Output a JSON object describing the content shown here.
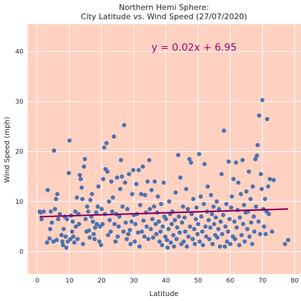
{
  "chart_data": {
    "type": "scatter",
    "title_lines": [
      "Northern Hemi Sphere:",
      "City Latitude vs. Wind Speed (27/07/2020)"
    ],
    "xlabel": "Latitude",
    "ylabel": "Wind Speed (mph)",
    "xlim": [
      -3,
      82
    ],
    "ylim": [
      -4.5,
      45.5
    ],
    "xticks": [
      0,
      10,
      20,
      30,
      40,
      50,
      60,
      70,
      80
    ],
    "yticks": [
      0,
      10,
      20,
      30,
      40
    ],
    "grid": true,
    "background_color": "#ffd1c1",
    "point_color": "#4c72b0",
    "regression": {
      "equation": "y = 0.02x + 6.95",
      "slope": 0.02,
      "intercept": 6.95,
      "x_range": [
        0.7,
        78
      ],
      "color": "#8b0060",
      "label_color": "#a0006e"
    },
    "points": [
      [
        0.7,
        8.0
      ],
      [
        1.0,
        7.8
      ],
      [
        1.3,
        6.5
      ],
      [
        2.0,
        8.0
      ],
      [
        3.0,
        1.8
      ],
      [
        3.2,
        12.3
      ],
      [
        3.8,
        2.6
      ],
      [
        4.0,
        4.5
      ],
      [
        4.2,
        8.0
      ],
      [
        4.5,
        5.8
      ],
      [
        5.0,
        2.0
      ],
      [
        5.2,
        20.2
      ],
      [
        5.5,
        8.5
      ],
      [
        5.8,
        10.5
      ],
      [
        6.0,
        2.3
      ],
      [
        6.2,
        11.5
      ],
      [
        6.5,
        6.5
      ],
      [
        7.0,
        7.5
      ],
      [
        7.5,
        3.3
      ],
      [
        7.8,
        2.0
      ],
      [
        8.0,
        1.3
      ],
      [
        8.2,
        4.5
      ],
      [
        8.5,
        7.0
      ],
      [
        8.8,
        3.0
      ],
      [
        9.0,
        0.8
      ],
      [
        9.2,
        6.5
      ],
      [
        9.5,
        2.0
      ],
      [
        9.8,
        15.7
      ],
      [
        10.0,
        22.2
      ],
      [
        10.3,
        2.5
      ],
      [
        10.5,
        7.2
      ],
      [
        10.8,
        4.0
      ],
      [
        11.0,
        6.0
      ],
      [
        11.2,
        3.0
      ],
      [
        11.5,
        1.8
      ],
      [
        11.8,
        8.0
      ],
      [
        12.0,
        5.0
      ],
      [
        12.3,
        10.8
      ],
      [
        12.5,
        2.5
      ],
      [
        12.8,
        7.5
      ],
      [
        13.0,
        5.5
      ],
      [
        13.2,
        15.3
      ],
      [
        13.5,
        14.5
      ],
      [
        13.8,
        12.8
      ],
      [
        14.0,
        10.5
      ],
      [
        14.2,
        1.5
      ],
      [
        14.5,
        17.0
      ],
      [
        14.8,
        18.5
      ],
      [
        15.0,
        6.5
      ],
      [
        15.3,
        4.0
      ],
      [
        15.5,
        9.0
      ],
      [
        15.8,
        8.0
      ],
      [
        16.0,
        4.2
      ],
      [
        16.3,
        2.8
      ],
      [
        16.5,
        10.3
      ],
      [
        16.8,
        7.0
      ],
      [
        17.0,
        11.5
      ],
      [
        17.3,
        6.0
      ],
      [
        17.5,
        3.5
      ],
      [
        17.8,
        2.5
      ],
      [
        18.0,
        4.8
      ],
      [
        18.3,
        7.8
      ],
      [
        18.5,
        5.5
      ],
      [
        18.8,
        9.0
      ],
      [
        19.0,
        13.0
      ],
      [
        19.3,
        2.0
      ],
      [
        19.5,
        5.0
      ],
      [
        19.8,
        1.3
      ],
      [
        20.0,
        8.5
      ],
      [
        20.3,
        5.5
      ],
      [
        20.5,
        14.5
      ],
      [
        20.8,
        20.8
      ],
      [
        21.0,
        7.5
      ],
      [
        21.2,
        16.5
      ],
      [
        21.5,
        21.7
      ],
      [
        21.8,
        16.0
      ],
      [
        22.0,
        3.3
      ],
      [
        22.3,
        10.0
      ],
      [
        22.5,
        6.3
      ],
      [
        22.8,
        4.0
      ],
      [
        23.0,
        14.0
      ],
      [
        23.3,
        8.0
      ],
      [
        23.5,
        10.8
      ],
      [
        23.8,
        23.0
      ],
      [
        24.0,
        5.5
      ],
      [
        24.3,
        2.0
      ],
      [
        24.5,
        7.5
      ],
      [
        24.8,
        14.8
      ],
      [
        25.0,
        3.0
      ],
      [
        25.3,
        5.0
      ],
      [
        25.5,
        7.0
      ],
      [
        25.8,
        12.5
      ],
      [
        26.0,
        18.3
      ],
      [
        26.3,
        15.0
      ],
      [
        26.5,
        9.0
      ],
      [
        26.8,
        4.0
      ],
      [
        27.0,
        25.3
      ],
      [
        27.3,
        13.8
      ],
      [
        27.5,
        5.8
      ],
      [
        27.8,
        2.5
      ],
      [
        28.0,
        8.5
      ],
      [
        28.3,
        3.5
      ],
      [
        28.5,
        15.5
      ],
      [
        28.8,
        4.3
      ],
      [
        29.0,
        1.5
      ],
      [
        29.3,
        6.0
      ],
      [
        29.5,
        11.5
      ],
      [
        29.8,
        16.3
      ],
      [
        30.0,
        7.3
      ],
      [
        30.3,
        2.0
      ],
      [
        30.5,
        5.5
      ],
      [
        30.8,
        13.5
      ],
      [
        31.0,
        7.5
      ],
      [
        31.3,
        3.8
      ],
      [
        31.5,
        16.3
      ],
      [
        31.8,
        1.0
      ],
      [
        32.0,
        9.3
      ],
      [
        32.3,
        11.5
      ],
      [
        32.5,
        4.0
      ],
      [
        32.8,
        17.0
      ],
      [
        33.0,
        6.2
      ],
      [
        33.3,
        3.0
      ],
      [
        33.5,
        11.3
      ],
      [
        33.8,
        7.8
      ],
      [
        34.0,
        5.0
      ],
      [
        34.3,
        14.0
      ],
      [
        34.5,
        2.5
      ],
      [
        34.8,
        18.3
      ],
      [
        35.0,
        8.5
      ],
      [
        35.3,
        4.5
      ],
      [
        35.5,
        12.3
      ],
      [
        35.8,
        6.5
      ],
      [
        36.0,
        2.8
      ],
      [
        36.3,
        9.0
      ],
      [
        36.5,
        14.0
      ],
      [
        36.8,
        5.5
      ],
      [
        37.0,
        3.5
      ],
      [
        37.3,
        7.8
      ],
      [
        37.5,
        11.0
      ],
      [
        37.8,
        6.0
      ],
      [
        38.0,
        2.0
      ],
      [
        38.3,
        4.0
      ],
      [
        38.5,
        9.5
      ],
      [
        38.8,
        1.3
      ],
      [
        39.0,
        5.0
      ],
      [
        39.3,
        13.8
      ],
      [
        39.5,
        7.0
      ],
      [
        39.8,
        3.0
      ],
      [
        40.0,
        6.5
      ],
      [
        40.3,
        2.3
      ],
      [
        40.5,
        0.8
      ],
      [
        40.8,
        4.5
      ],
      [
        41.0,
        10.0
      ],
      [
        41.3,
        7.5
      ],
      [
        41.5,
        1.8
      ],
      [
        41.8,
        5.5
      ],
      [
        42.0,
        8.0
      ],
      [
        42.3,
        3.3
      ],
      [
        42.5,
        1.0
      ],
      [
        42.8,
        6.3
      ],
      [
        43.0,
        11.8
      ],
      [
        43.3,
        2.5
      ],
      [
        43.5,
        4.8
      ],
      [
        43.8,
        19.3
      ],
      [
        44.0,
        7.0
      ],
      [
        44.3,
        3.8
      ],
      [
        44.5,
        14.8
      ],
      [
        44.8,
        1.5
      ],
      [
        45.0,
        5.8
      ],
      [
        45.3,
        9.0
      ],
      [
        45.5,
        2.0
      ],
      [
        45.8,
        6.8
      ],
      [
        46.0,
        4.0
      ],
      [
        46.3,
        12.5
      ],
      [
        46.5,
        1.0
      ],
      [
        46.8,
        8.5
      ],
      [
        47.0,
        3.0
      ],
      [
        47.3,
        18.5
      ],
      [
        47.5,
        5.0
      ],
      [
        47.8,
        17.8
      ],
      [
        48.0,
        7.5
      ],
      [
        48.3,
        2.5
      ],
      [
        48.5,
        10.5
      ],
      [
        48.8,
        4.5
      ],
      [
        49.0,
        1.5
      ],
      [
        49.3,
        6.5
      ],
      [
        49.5,
        8.8
      ],
      [
        49.8,
        3.5
      ],
      [
        50.0,
        5.5
      ],
      [
        50.3,
        19.5
      ],
      [
        50.5,
        2.0
      ],
      [
        50.8,
        11.0
      ],
      [
        51.0,
        7.0
      ],
      [
        51.3,
        4.0
      ],
      [
        51.5,
        1.3
      ],
      [
        51.8,
        9.5
      ],
      [
        52.0,
        17.5
      ],
      [
        52.3,
        5.0
      ],
      [
        52.5,
        3.0
      ],
      [
        52.8,
        8.0
      ],
      [
        53.0,
        13.0
      ],
      [
        53.3,
        6.3
      ],
      [
        53.5,
        2.5
      ],
      [
        53.8,
        4.8
      ],
      [
        54.0,
        11.3
      ],
      [
        54.3,
        7.5
      ],
      [
        54.5,
        1.5
      ],
      [
        54.8,
        9.0
      ],
      [
        55.0,
        5.5
      ],
      [
        55.3,
        3.3
      ],
      [
        55.5,
        6.8
      ],
      [
        55.8,
        10.0
      ],
      [
        56.0,
        2.8
      ],
      [
        56.3,
        4.5
      ],
      [
        56.5,
        8.5
      ],
      [
        56.8,
        1.0
      ],
      [
        57.0,
        6.0
      ],
      [
        57.3,
        15.5
      ],
      [
        57.5,
        3.5
      ],
      [
        57.8,
        7.3
      ],
      [
        58.0,
        24.2
      ],
      [
        58.3,
        1.0
      ],
      [
        58.5,
        5.0
      ],
      [
        58.8,
        9.5
      ],
      [
        59.0,
        2.0
      ],
      [
        59.3,
        4.0
      ],
      [
        59.5,
        18.0
      ],
      [
        59.8,
        6.5
      ],
      [
        60.0,
        1.5
      ],
      [
        60.3,
        8.8
      ],
      [
        60.5,
        11.0
      ],
      [
        60.8,
        3.0
      ],
      [
        61.0,
        14.5
      ],
      [
        61.3,
        6.0
      ],
      [
        61.5,
        2.5
      ],
      [
        61.8,
        17.8
      ],
      [
        62.0,
        4.8
      ],
      [
        62.3,
        8.3
      ],
      [
        62.5,
        13.8
      ],
      [
        62.8,
        1.3
      ],
      [
        63.0,
        6.8
      ],
      [
        63.3,
        11.5
      ],
      [
        63.5,
        3.3
      ],
      [
        63.8,
        18.3
      ],
      [
        64.0,
        5.5
      ],
      [
        64.3,
        9.3
      ],
      [
        64.5,
        2.0
      ],
      [
        64.8,
        7.8
      ],
      [
        65.0,
        12.0
      ],
      [
        65.3,
        4.5
      ],
      [
        65.5,
        8.0
      ],
      [
        65.8,
        16.0
      ],
      [
        66.0,
        3.0
      ],
      [
        66.3,
        10.5
      ],
      [
        66.5,
        5.8
      ],
      [
        66.8,
        1.5
      ],
      [
        67.0,
        13.0
      ],
      [
        67.3,
        7.0
      ],
      [
        67.5,
        4.0
      ],
      [
        67.8,
        18.5
      ],
      [
        68.0,
        9.0
      ],
      [
        68.3,
        19.2
      ],
      [
        68.5,
        21.3
      ],
      [
        68.8,
        6.0
      ],
      [
        69.0,
        27.2
      ],
      [
        69.3,
        3.5
      ],
      [
        69.5,
        15.5
      ],
      [
        69.8,
        12.5
      ],
      [
        70.0,
        30.3
      ],
      [
        70.3,
        8.5
      ],
      [
        70.5,
        5.0
      ],
      [
        70.8,
        10.5
      ],
      [
        71.0,
        3.5
      ],
      [
        71.3,
        8.0
      ],
      [
        71.5,
        26.5
      ],
      [
        71.8,
        13.0
      ],
      [
        72.0,
        7.5
      ],
      [
        72.3,
        14.5
      ],
      [
        73.0,
        4.0
      ],
      [
        73.5,
        14.3
      ],
      [
        77.0,
        1.5
      ],
      [
        78.0,
        2.3
      ]
    ]
  }
}
